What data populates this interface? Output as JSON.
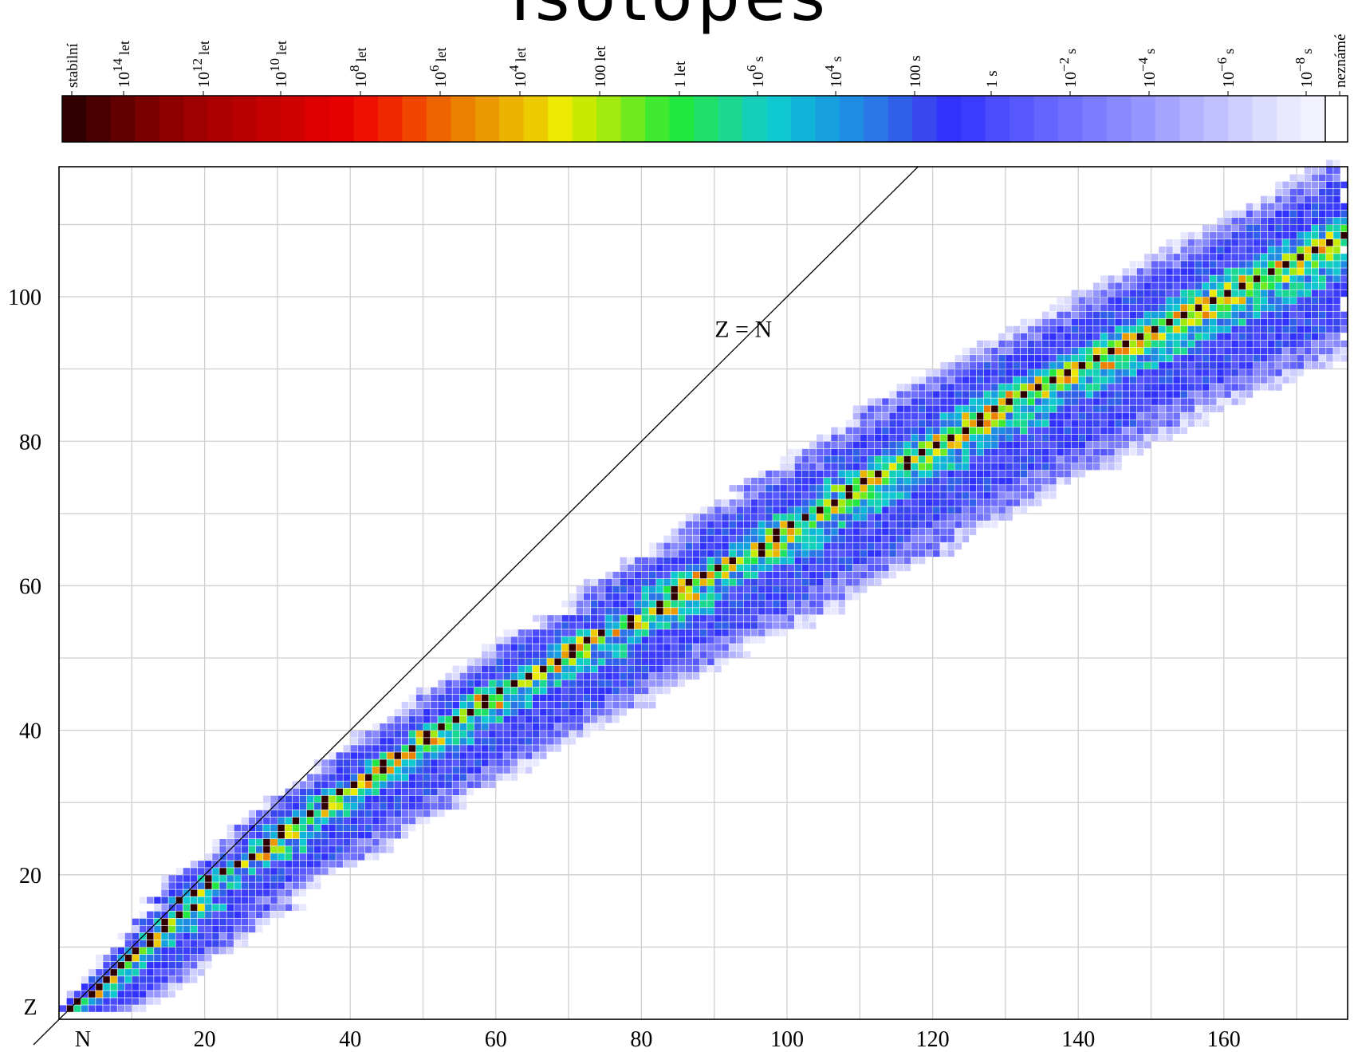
{
  "page_title_partial": "Isotopes",
  "chart_data": {
    "type": "heatmap",
    "title": "",
    "xlabel": "N",
    "ylabel": "Z",
    "xlim": [
      0,
      177
    ],
    "ylim": [
      0,
      118
    ],
    "x_ticks": [
      20,
      40,
      60,
      80,
      100,
      120,
      140,
      160
    ],
    "y_ticks": [
      20,
      40,
      60,
      80,
      100
    ],
    "grid": true,
    "annotations": [
      {
        "text": "Z = N",
        "kind": "line",
        "from": [
          0,
          0
        ],
        "to": [
          118,
          118
        ],
        "label_at": [
          94,
          96
        ]
      }
    ],
    "legend": {
      "type": "colorbar",
      "placement": "top",
      "labels": [
        {
          "main": "stabilní",
          "sup": "",
          "unit": ""
        },
        {
          "main": "10",
          "sup": "14",
          "unit": "let"
        },
        {
          "main": "10",
          "sup": "12",
          "unit": "let"
        },
        {
          "main": "10",
          "sup": "10",
          "unit": "let"
        },
        {
          "main": "10",
          "sup": "8",
          "unit": "let"
        },
        {
          "main": "10",
          "sup": "6",
          "unit": "let"
        },
        {
          "main": "10",
          "sup": "4",
          "unit": "let"
        },
        {
          "main": "100 let",
          "sup": "",
          "unit": ""
        },
        {
          "main": "1 let",
          "sup": "",
          "unit": ""
        },
        {
          "main": "10",
          "sup": "6",
          "unit": "s"
        },
        {
          "main": "10",
          "sup": "4",
          "unit": "s"
        },
        {
          "main": "100 s",
          "sup": "",
          "unit": ""
        },
        {
          "main": "1 s",
          "sup": "",
          "unit": ""
        },
        {
          "main": "10",
          "sup": "−2",
          "unit": "s"
        },
        {
          "main": "10",
          "sup": "−4",
          "unit": "s"
        },
        {
          "main": "10",
          "sup": "−6",
          "unit": "s"
        },
        {
          "main": "10",
          "sup": "−8",
          "unit": "s"
        },
        {
          "main": "neznámé",
          "sup": "",
          "unit": ""
        }
      ],
      "colors": [
        "#300000",
        "#4a0000",
        "#620000",
        "#7a0000",
        "#8e0000",
        "#9e0000",
        "#ac0000",
        "#b80000",
        "#c40000",
        "#d00000",
        "#dc0000",
        "#e60000",
        "#ee1000",
        "#f02800",
        "#f04600",
        "#ee6400",
        "#ec8000",
        "#ea9a00",
        "#ecb400",
        "#eccc00",
        "#ecea00",
        "#c8ea00",
        "#a0ea10",
        "#70ea20",
        "#40ea30",
        "#20e840",
        "#1ee068",
        "#1ad890",
        "#14d0b8",
        "#10c8d0",
        "#10b4d8",
        "#16a0de",
        "#1e8ce2",
        "#2a76e6",
        "#3060ea",
        "#3848ee",
        "#3232ff",
        "#3c3cff",
        "#4c4cff",
        "#5858ff",
        "#6464ff",
        "#7070ff",
        "#7c7cff",
        "#8888ff",
        "#9696ff",
        "#a4a4ff",
        "#b2b2ff",
        "#c0c0ff",
        "#ceceff",
        "#dcdcff",
        "#e8e8ff",
        "#f2f2ff",
        "#ffffff"
      ]
    },
    "stable_path": [
      [
        0,
        1
      ],
      [
        1,
        1
      ],
      [
        2,
        2
      ],
      [
        4,
        3
      ],
      [
        5,
        4
      ],
      [
        6,
        5
      ],
      [
        7,
        6
      ],
      [
        8,
        7
      ],
      [
        9,
        8
      ],
      [
        10,
        9
      ],
      [
        12,
        10
      ],
      [
        12,
        11
      ],
      [
        14,
        12
      ],
      [
        14,
        13
      ],
      [
        16,
        14
      ],
      [
        18,
        15
      ],
      [
        16,
        16
      ],
      [
        18,
        17
      ],
      [
        20,
        18
      ],
      [
        20,
        19
      ],
      [
        22,
        20
      ],
      [
        24,
        21
      ],
      [
        26,
        22
      ],
      [
        28,
        23
      ],
      [
        28,
        24
      ],
      [
        30,
        25
      ],
      [
        30,
        26
      ],
      [
        32,
        27
      ],
      [
        34,
        28
      ],
      [
        36,
        29
      ],
      [
        36,
        30
      ],
      [
        38,
        31
      ],
      [
        40,
        32
      ],
      [
        42,
        33
      ],
      [
        44,
        34
      ],
      [
        44,
        35
      ],
      [
        46,
        36
      ],
      [
        48,
        37
      ],
      [
        50,
        38
      ],
      [
        50,
        39
      ],
      [
        52,
        40
      ],
      [
        54,
        41
      ],
      [
        56,
        42
      ],
      [
        58,
        43
      ],
      [
        58,
        44
      ],
      [
        60,
        45
      ],
      [
        62,
        46
      ],
      [
        64,
        47
      ],
      [
        66,
        48
      ],
      [
        68,
        49
      ],
      [
        70,
        50
      ],
      [
        70,
        51
      ],
      [
        72,
        52
      ],
      [
        74,
        53
      ],
      [
        78,
        54
      ],
      [
        78,
        55
      ],
      [
        82,
        56
      ],
      [
        82,
        57
      ],
      [
        84,
        58
      ],
      [
        84,
        59
      ],
      [
        86,
        60
      ],
      [
        88,
        61
      ],
      [
        90,
        62
      ],
      [
        92,
        63
      ],
      [
        96,
        64
      ],
      [
        96,
        65
      ],
      [
        98,
        66
      ],
      [
        98,
        67
      ],
      [
        100,
        68
      ],
      [
        102,
        69
      ],
      [
        104,
        70
      ],
      [
        106,
        71
      ],
      [
        108,
        72
      ],
      [
        108,
        73
      ],
      [
        110,
        74
      ],
      [
        112,
        75
      ],
      [
        116,
        76
      ],
      [
        116,
        77
      ],
      [
        118,
        78
      ],
      [
        120,
        79
      ],
      [
        122,
        80
      ],
      [
        124,
        81
      ],
      [
        126,
        82
      ],
      [
        126,
        83
      ]
    ],
    "band": {
      "proton_rich_offset": [
        2,
        10,
        18,
        23
      ],
      "neutron_rich_offset": [
        10,
        22,
        30,
        44
      ],
      "control_z": [
        0,
        40,
        80,
        118
      ]
    }
  }
}
